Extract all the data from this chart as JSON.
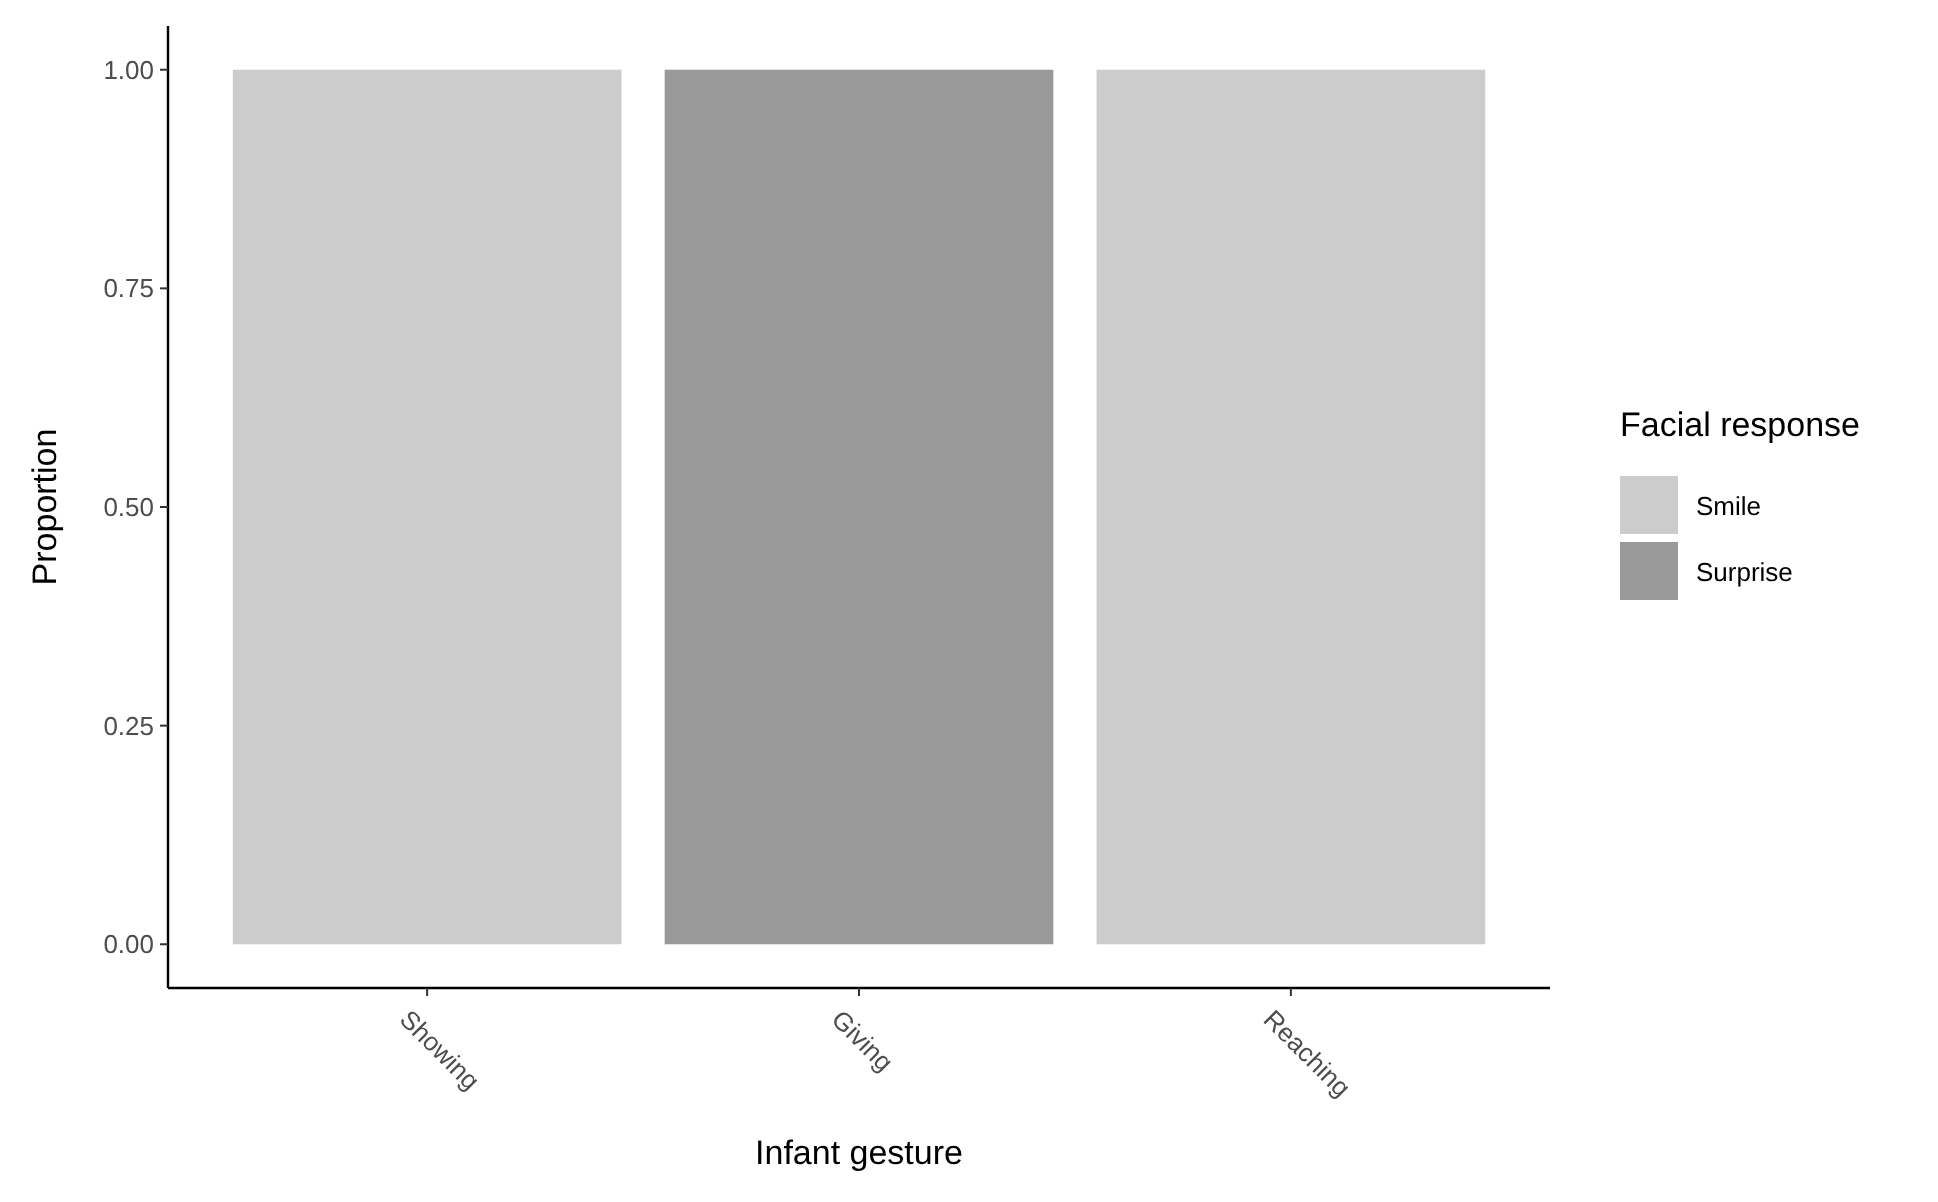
{
  "chart_data": {
    "type": "bar",
    "stacked": true,
    "xlabel": "Infant gesture",
    "ylabel": "Proportion",
    "legend_title": "Facial response",
    "legend": "right",
    "categories": [
      "Showing",
      "Giving",
      "Reaching"
    ],
    "series": [
      {
        "name": "Smile",
        "color": "#cccccc",
        "values": [
          1,
          0,
          1
        ]
      },
      {
        "name": "Surprise",
        "color": "#999999",
        "values": [
          0,
          1,
          0
        ]
      }
    ],
    "ylim": [
      -0.05,
      1.05
    ],
    "yticks": [
      {
        "value": 0,
        "label": "0.00"
      },
      {
        "value": 0.25,
        "label": "0.25"
      },
      {
        "value": 0.5,
        "label": "0.50"
      },
      {
        "value": 0.75,
        "label": "0.75"
      },
      {
        "value": 1,
        "label": "1.00"
      }
    ],
    "grid": false
  }
}
